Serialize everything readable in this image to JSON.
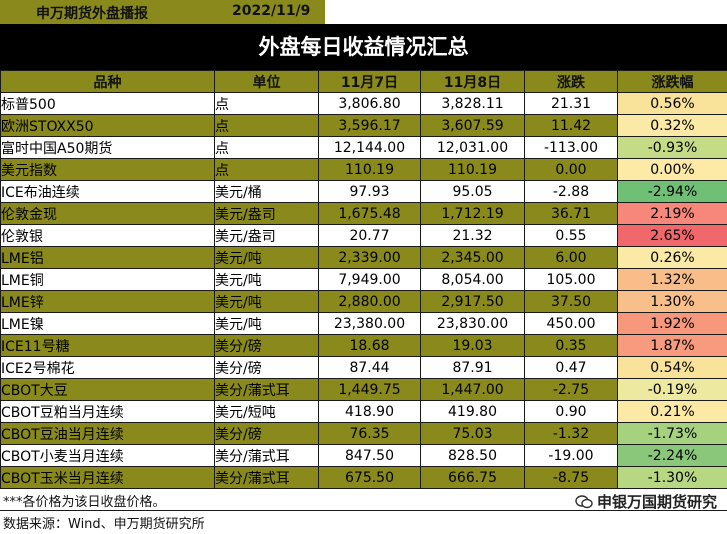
{
  "header": {
    "brand": "申万期货外盘播报",
    "date": "2022/11/9",
    "title": "外盘每日收益情况汇总"
  },
  "columns": [
    "品种",
    "单位",
    "11月7日",
    "11月8日",
    "涨跌",
    "涨跌幅"
  ],
  "rows": [
    {
      "name": "标普500",
      "unit": "点",
      "d1": "3,806.80",
      "d2": "3,828.11",
      "chg": "21.31",
      "pct": "0.56%",
      "pct_color": "#f9e39a"
    },
    {
      "name": "欧洲STOXX50",
      "unit": "点",
      "d1": "3,596.17",
      "d2": "3,607.59",
      "chg": "11.42",
      "pct": "0.32%",
      "pct_color": "#fbe9a6"
    },
    {
      "name": "富时中国A50期货",
      "unit": "点",
      "d1": "12,144.00",
      "d2": "12,031.00",
      "chg": "-113.00",
      "pct": "-0.93%",
      "pct_color": "#c6db86"
    },
    {
      "name": "美元指数",
      "unit": "点",
      "d1": "110.19",
      "d2": "110.19",
      "chg": "0.00",
      "pct": "0.00%",
      "pct_color": "#fdeaa6"
    },
    {
      "name": "ICE布油连续",
      "unit": "美元/桶",
      "d1": "97.93",
      "d2": "95.05",
      "chg": "-2.88",
      "pct": "-2.94%",
      "pct_color": "#6fbf74"
    },
    {
      "name": "伦敦金现",
      "unit": "美元/盎司",
      "d1": "1,675.48",
      "d2": "1,712.19",
      "chg": "36.71",
      "pct": "2.19%",
      "pct_color": "#f6877a"
    },
    {
      "name": "伦敦银",
      "unit": "美元/盎司",
      "d1": "20.77",
      "d2": "21.32",
      "chg": "0.55",
      "pct": "2.65%",
      "pct_color": "#f0686b"
    },
    {
      "name": "LME铝",
      "unit": "美元/吨",
      "d1": "2,339.00",
      "d2": "2,345.00",
      "chg": "6.00",
      "pct": "0.26%",
      "pct_color": "#fbe9a6"
    },
    {
      "name": "LME铜",
      "unit": "美元/吨",
      "d1": "7,949.00",
      "d2": "8,054.00",
      "chg": "105.00",
      "pct": "1.32%",
      "pct_color": "#f9bd8a"
    },
    {
      "name": "LME锌",
      "unit": "美元/吨",
      "d1": "2,880.00",
      "d2": "2,917.50",
      "chg": "37.50",
      "pct": "1.30%",
      "pct_color": "#f9bf8b"
    },
    {
      "name": "LME镍",
      "unit": "美元/吨",
      "d1": "23,380.00",
      "d2": "23,830.00",
      "chg": "450.00",
      "pct": "1.92%",
      "pct_color": "#f7977c"
    },
    {
      "name": "ICE11号糖",
      "unit": "美分/磅",
      "d1": "18.68",
      "d2": "19.03",
      "chg": "0.35",
      "pct": "1.87%",
      "pct_color": "#f79a7d"
    },
    {
      "name": "ICE2号棉花",
      "unit": "美分/磅",
      "d1": "87.44",
      "d2": "87.91",
      "chg": "0.47",
      "pct": "0.54%",
      "pct_color": "#f9e39a"
    },
    {
      "name": "CBOT大豆",
      "unit": "美分/蒲式耳",
      "d1": "1,449.75",
      "d2": "1,447.00",
      "chg": "-2.75",
      "pct": "-0.19%",
      "pct_color": "#eee9a1"
    },
    {
      "name": "CBOT豆粕当月连续",
      "unit": "美元/短吨",
      "d1": "418.90",
      "d2": "419.80",
      "chg": "0.90",
      "pct": "0.21%",
      "pct_color": "#fce9a6"
    },
    {
      "name": "CBOT豆油当月连续",
      "unit": "美分/磅",
      "d1": "76.35",
      "d2": "75.03",
      "chg": "-1.32",
      "pct": "-1.73%",
      "pct_color": "#a6d17f"
    },
    {
      "name": "CBOT小麦当月连续",
      "unit": "美分/蒲式耳",
      "d1": "847.50",
      "d2": "828.50",
      "chg": "-19.00",
      "pct": "-2.24%",
      "pct_color": "#8bc77a"
    },
    {
      "name": "CBOT玉米当月连续",
      "unit": "美分/蒲式耳",
      "d1": "675.50",
      "d2": "666.75",
      "chg": "-8.75",
      "pct": "-1.30%",
      "pct_color": "#b8d782"
    }
  ],
  "footer": {
    "note": "***各价格为该日收盘价格。",
    "source": "数据来源：Wind、申万期货研究所",
    "watermark": "申银万国期货研究"
  }
}
